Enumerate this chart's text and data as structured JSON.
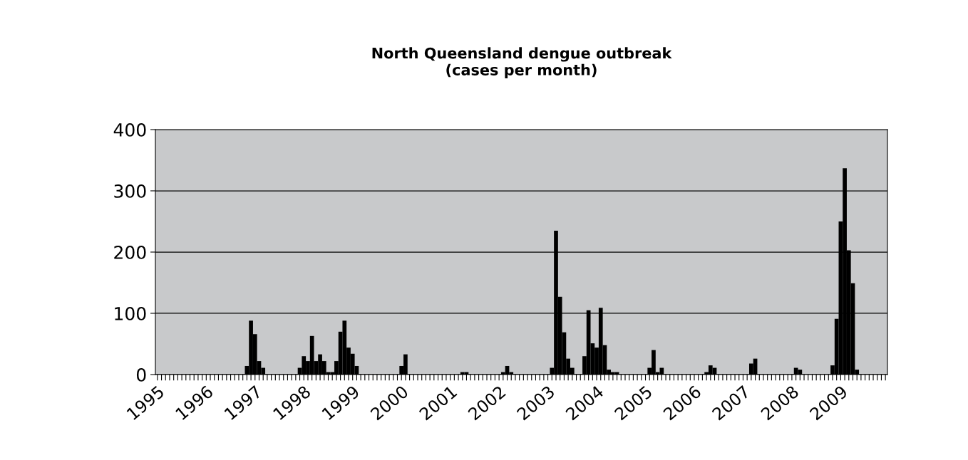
{
  "chart_data": {
    "type": "bar",
    "title": "North Queensland dengue outbreak\n(cases per month)",
    "categories": [
      "1995",
      null,
      null,
      null,
      null,
      null,
      null,
      null,
      null,
      null,
      null,
      null,
      "1996",
      null,
      null,
      null,
      null,
      null,
      null,
      null,
      null,
      null,
      null,
      null,
      "1997",
      null,
      null,
      null,
      null,
      null,
      null,
      null,
      null,
      null,
      null,
      null,
      "1998",
      null,
      null,
      null,
      null,
      null,
      null,
      null,
      null,
      null,
      null,
      null,
      "1999",
      null,
      null,
      null,
      null,
      null,
      null,
      null,
      null,
      null,
      null,
      null,
      "2000",
      null,
      null,
      null,
      null,
      null,
      null,
      null,
      null,
      null,
      null,
      null,
      "2001",
      null,
      null,
      null,
      null,
      null,
      null,
      null,
      null,
      null,
      null,
      null,
      "2002",
      null,
      null,
      null,
      null,
      null,
      null,
      null,
      null,
      null,
      null,
      null,
      "2003",
      null,
      null,
      null,
      null,
      null,
      null,
      null,
      null,
      null,
      null,
      null,
      "2004",
      null,
      null,
      null,
      null,
      null,
      null,
      null,
      null,
      null,
      null,
      null,
      "2005",
      null,
      null,
      null,
      null,
      null,
      null,
      null,
      null,
      null,
      null,
      null,
      "2006",
      null,
      null,
      null,
      null,
      null,
      null,
      null,
      null,
      null,
      null,
      null,
      "2007",
      null,
      null,
      null,
      null,
      null,
      null,
      null,
      null,
      null,
      null,
      null,
      "2008",
      null,
      null,
      null,
      null,
      null,
      null,
      null,
      null,
      null,
      null,
      null,
      "2009",
      null,
      null,
      null,
      null,
      null,
      null,
      null,
      null,
      null,
      null,
      null
    ],
    "values": [
      0,
      0,
      0,
      0,
      0,
      0,
      0,
      0,
      0,
      0,
      0,
      0,
      0,
      0,
      0,
      0,
      0,
      0,
      0,
      0,
      0,
      0,
      14,
      88,
      66,
      22,
      11,
      0,
      0,
      0,
      0,
      0,
      0,
      0,
      0,
      11,
      30,
      22,
      63,
      22,
      33,
      22,
      4,
      4,
      22,
      70,
      88,
      44,
      34,
      14,
      0,
      0,
      0,
      0,
      0,
      0,
      0,
      0,
      0,
      0,
      14,
      33,
      0,
      0,
      0,
      0,
      0,
      0,
      0,
      0,
      0,
      0,
      0,
      0,
      0,
      4,
      4,
      0,
      0,
      0,
      0,
      0,
      0,
      0,
      0,
      4,
      14,
      4,
      0,
      0,
      0,
      0,
      0,
      0,
      0,
      0,
      0,
      11,
      235,
      127,
      69,
      26,
      11,
      0,
      0,
      30,
      105,
      51,
      44,
      109,
      48,
      8,
      4,
      4,
      0,
      0,
      0,
      0,
      0,
      0,
      0,
      11,
      40,
      4,
      11,
      0,
      0,
      0,
      0,
      0,
      0,
      0,
      0,
      0,
      0,
      4,
      15,
      11,
      0,
      0,
      0,
      0,
      0,
      0,
      0,
      0,
      18,
      26,
      0,
      0,
      0,
      0,
      0,
      0,
      0,
      0,
      0,
      11,
      8,
      0,
      0,
      0,
      0,
      0,
      0,
      0,
      15,
      91,
      250,
      337,
      203,
      149,
      8,
      0,
      0,
      0,
      0,
      0,
      0,
      0
    ],
    "color": "#000000",
    "ylim": [
      0,
      400
    ],
    "yticks": [
      0,
      100,
      200,
      300,
      400
    ],
    "grid": "y",
    "legend": false
  }
}
